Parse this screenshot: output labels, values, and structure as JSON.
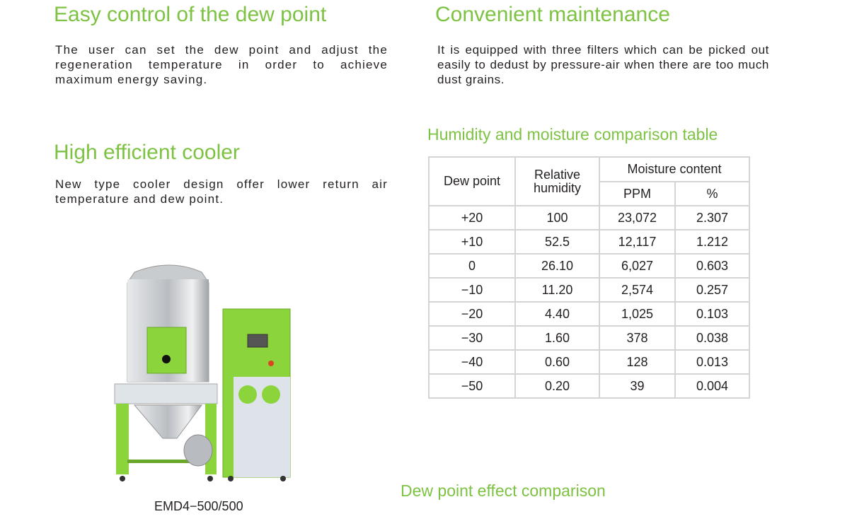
{
  "sections": {
    "dew_point": {
      "title": "Easy control of the dew point",
      "text": "The user can set the dew point and adjust the regeneration temperature in order to achieve maximum energy saving."
    },
    "maintenance": {
      "title": "Convenient maintenance",
      "text": "It is equipped with three filters which can be picked out easily to dedust by pressure-air when there are too much dust grains."
    },
    "cooler": {
      "title": "High efficient cooler",
      "text": "New type cooler design offer lower return air temperature and dew point."
    }
  },
  "table": {
    "title": "Humidity and moisture comparison table",
    "headers": {
      "dew_point": "Dew point",
      "relative_humidity": "Relative humidity",
      "moisture_content": "Moisture content",
      "ppm": "PPM",
      "percent": "%"
    },
    "rows": [
      [
        "+20",
        "100",
        "23,072",
        "2.307"
      ],
      [
        "+10",
        "52.5",
        "12,117",
        "1.212"
      ],
      [
        "0",
        "26.10",
        "6,027",
        "0.603"
      ],
      [
        "−10",
        "11.20",
        "2,574",
        "0.257"
      ],
      [
        "−20",
        "4.40",
        "1,025",
        "0.103"
      ],
      [
        "−30",
        "1.60",
        "378",
        "0.038"
      ],
      [
        "−40",
        "0.60",
        "128",
        "0.013"
      ],
      [
        "−50",
        "0.20",
        "39",
        "0.004"
      ]
    ]
  },
  "product": {
    "model": "EMD4−500/500"
  },
  "effect_title": "Dew point effect comparison",
  "colors": {
    "accent": "#7dc242",
    "machine_green": "#8cd43c",
    "table_border": "#d4d4d4"
  }
}
